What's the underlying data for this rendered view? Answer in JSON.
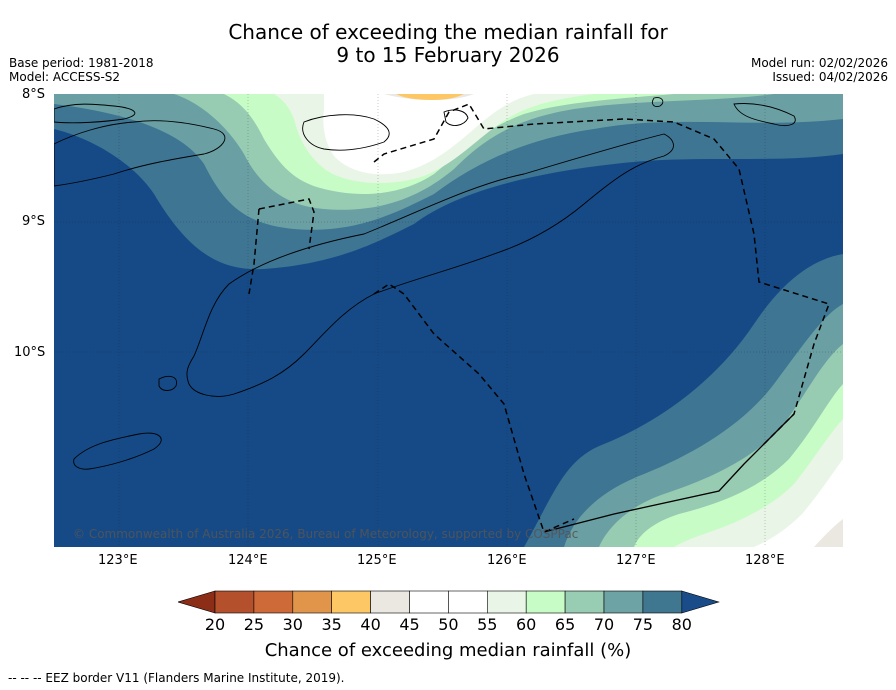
{
  "title": {
    "line1": "Chance of exceeding the median rainfall for",
    "line2": "9 to 15 February 2026"
  },
  "meta": {
    "base_period": "Base period: 1981-2018",
    "model": "Model: ACCESS-S2",
    "model_run": "Model run: 02/02/2026",
    "issued": "Issued: 04/02/2026"
  },
  "map": {
    "lat_labels": [
      "8°S",
      "9°S",
      "10°S"
    ],
    "lon_labels": [
      "123°E",
      "124°E",
      "125°E",
      "126°E",
      "127°E",
      "128°E"
    ],
    "credit": "© Commonwealth of Australia 2026, Bureau of Meteorology, supported by COSPPac"
  },
  "colorbar": {
    "labels": [
      "20",
      "25",
      "30",
      "35",
      "40",
      "45",
      "50",
      "55",
      "60",
      "65",
      "70",
      "75",
      "80"
    ],
    "colors": [
      "#8c2d17",
      "#b4502c",
      "#cd6a38",
      "#e0954a",
      "#fdc766",
      "#ebe8e2",
      "#ffffff",
      "#ffffff",
      "#e9f5e6",
      "#c8fcc6",
      "#98cdb4",
      "#6da3a4",
      "#3f7690",
      "#1b4c8a"
    ],
    "title": "Chance of exceeding median rainfall (%)"
  },
  "footer": "-- -- -- EEZ border V11 (Flanders Marine Institute, 2019)."
}
